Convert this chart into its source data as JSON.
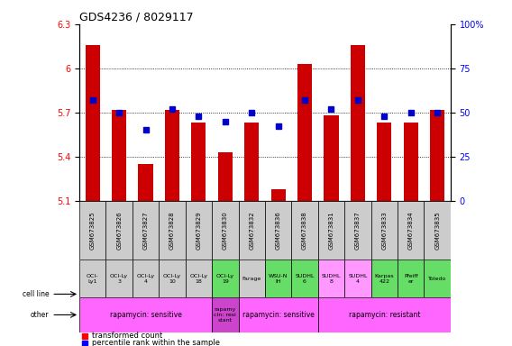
{
  "title": "GDS4236 / 8029117",
  "samples": [
    "GSM673825",
    "GSM673826",
    "GSM673827",
    "GSM673828",
    "GSM673829",
    "GSM673830",
    "GSM673832",
    "GSM673836",
    "GSM673838",
    "GSM673831",
    "GSM673837",
    "GSM673833",
    "GSM673834",
    "GSM673835"
  ],
  "bar_values": [
    6.16,
    5.72,
    5.35,
    5.72,
    5.63,
    5.43,
    5.63,
    5.18,
    6.03,
    5.68,
    6.16,
    5.63,
    5.63,
    5.72
  ],
  "dot_values": [
    57,
    50,
    40,
    52,
    48,
    45,
    50,
    42,
    57,
    52,
    57,
    48,
    50,
    50
  ],
  "ylim_left": [
    5.1,
    6.3
  ],
  "ylim_right": [
    0,
    100
  ],
  "yticks_left": [
    5.1,
    5.4,
    5.7,
    6.0,
    6.3
  ],
  "yticks_right": [
    0,
    25,
    50,
    75,
    100
  ],
  "ytick_labels_left": [
    "5.1",
    "5.4",
    "5.7",
    "6",
    "6.3"
  ],
  "ytick_labels_right": [
    "0",
    "25",
    "50",
    "75",
    "100%"
  ],
  "cell_line_labels": [
    "OCI-\nLy1",
    "OCI-Ly\n3",
    "OCI-Ly\n4",
    "OCI-Ly\n10",
    "OCI-Ly\n18",
    "OCI-Ly\n19",
    "Farage",
    "WSU-N\nIH",
    "SUDHL\n6",
    "SUDHL\n8",
    "SUDHL\n4",
    "Karpas\n422",
    "Pfeiff\ner",
    "Toledo"
  ],
  "cell_line_bg": [
    "#cccccc",
    "#cccccc",
    "#cccccc",
    "#cccccc",
    "#cccccc",
    "#66dd66",
    "#cccccc",
    "#66dd66",
    "#66dd66",
    "#ff99ff",
    "#ff99ff",
    "#66dd66",
    "#66dd66",
    "#66dd66"
  ],
  "other_spans": [
    {
      "start": 0,
      "end": 5,
      "label": "rapamycin: sensitive",
      "color": "#ff66ff"
    },
    {
      "start": 5,
      "end": 6,
      "label": "rapamy\ncin: resi\nstant",
      "color": "#cc44cc"
    },
    {
      "start": 6,
      "end": 9,
      "label": "rapamycin: sensitive",
      "color": "#ff66ff"
    },
    {
      "start": 9,
      "end": 14,
      "label": "rapamycin: resistant",
      "color": "#ff66ff"
    }
  ],
  "bar_color": "#cc0000",
  "dot_color": "#0000cc",
  "gsm_bg": "#cccccc"
}
